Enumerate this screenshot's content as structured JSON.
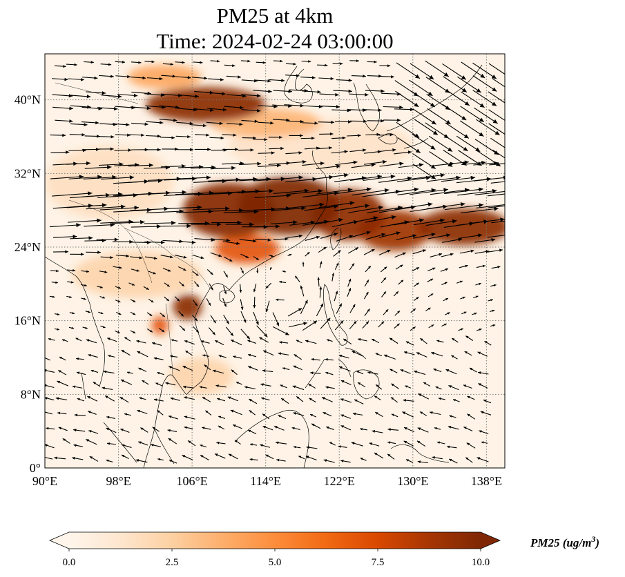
{
  "figure": {
    "title_line1": "PM25 at 4km",
    "title_line2": "Time: 2024-02-24 03:00:00",
    "lon_ticks": [
      "90°E",
      "98°E",
      "106°E",
      "114°E",
      "122°E",
      "130°E",
      "138°E"
    ],
    "lat_ticks": [
      "0°",
      "8°N",
      "16°N",
      "24°N",
      "32°N",
      "40°N"
    ],
    "gridlines": true
  },
  "map_extent": {
    "lon_min": 90,
    "lon_max": 140,
    "lat_min": 0,
    "lat_max": 45
  },
  "pm25_plumes": [
    {
      "lon": 107.5,
      "lat": 39.5,
      "rlon": 6.5,
      "rlat": 1.9,
      "value": 9.6
    },
    {
      "lon": 103.0,
      "lat": 42.5,
      "rlon": 4.0,
      "rlat": 1.3,
      "value": 4.0
    },
    {
      "lon": 114.0,
      "lat": 37.5,
      "rlon": 6.0,
      "rlat": 1.6,
      "value": 3.5
    },
    {
      "lon": 110.0,
      "lat": 28.0,
      "rlon": 5.0,
      "rlat": 3.0,
      "value": 9.8
    },
    {
      "lon": 116.5,
      "lat": 28.5,
      "rlon": 5.5,
      "rlat": 3.2,
      "value": 10.0
    },
    {
      "lon": 123.0,
      "lat": 27.5,
      "rlon": 4.0,
      "rlat": 2.8,
      "value": 9.5
    },
    {
      "lon": 128.0,
      "lat": 25.8,
      "rlon": 4.0,
      "rlat": 2.2,
      "value": 9.0
    },
    {
      "lon": 135.5,
      "lat": 26.2,
      "rlon": 5.0,
      "rlat": 2.0,
      "value": 9.6
    },
    {
      "lon": 112.0,
      "lat": 23.8,
      "rlon": 3.5,
      "rlat": 1.6,
      "value": 7.0
    },
    {
      "lon": 105.5,
      "lat": 17.5,
      "rlon": 1.6,
      "rlat": 1.4,
      "value": 9.6
    },
    {
      "lon": 102.5,
      "lat": 15.5,
      "rlon": 0.9,
      "rlat": 1.0,
      "value": 7.0
    },
    {
      "lon": 100.0,
      "lat": 21.0,
      "rlon": 7.0,
      "rlat": 2.5,
      "value": 2.2
    },
    {
      "lon": 97.0,
      "lat": 31.0,
      "rlon": 7.0,
      "rlat": 4.0,
      "value": 1.6
    },
    {
      "lon": 107.0,
      "lat": 10.0,
      "rlon": 3.5,
      "rlat": 2.0,
      "value": 2.2
    },
    {
      "lon": 120.0,
      "lat": 35.0,
      "rlon": 10.0,
      "rlat": 3.0,
      "value": 1.4
    }
  ],
  "colorbar": {
    "label": "PM25 (ug/m3)",
    "label_main": "PM25 (ug/m",
    "label_sup": "3",
    "label_end": ")",
    "min": 0,
    "max": 10,
    "ticks": [
      "0.0",
      "2.5",
      "5.0",
      "7.5",
      "10.0"
    ],
    "colors": [
      "#fff5eb",
      "#fee6ce",
      "#fdd0a2",
      "#fdae6b",
      "#fd8d3c",
      "#f16913",
      "#d94801",
      "#a63603",
      "#7f2704"
    ],
    "extend": "both"
  },
  "colors": {
    "background_fill": "#fef3e6",
    "coastline": "#000000",
    "gridline": "#777777",
    "arrow": "#000000"
  }
}
